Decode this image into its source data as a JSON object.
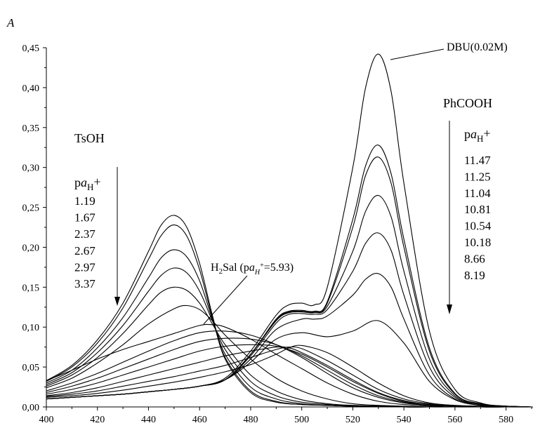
{
  "chart_data": {
    "type": "line",
    "ylabel": "A",
    "xlim": [
      400,
      590
    ],
    "ylim": [
      0,
      0.45
    ],
    "x_ticks": [
      400,
      420,
      440,
      460,
      480,
      500,
      520,
      540,
      560,
      580
    ],
    "x_tick_labels": [
      "400",
      "420",
      "440",
      "460",
      "480",
      "500",
      "520",
      "540",
      "560",
      "580"
    ],
    "y_ticks": [
      0,
      0.05,
      0.1,
      0.15,
      0.2,
      0.25,
      0.3,
      0.35,
      0.4,
      0.45
    ],
    "y_tick_labels": [
      "0,00",
      "0,05",
      "0,10",
      "0,15",
      "0,20",
      "0,25",
      "0,30",
      "0,35",
      "0,40",
      "0,45"
    ],
    "grid": false,
    "tsoh": {
      "title": "TsOH",
      "pa_p": "p",
      "pa_a": "a",
      "pa_sub": "H",
      "pa_sup": "+",
      "values": [
        "1.19",
        "1.67",
        "2.37",
        "2.67",
        "2.97",
        "3.37"
      ]
    },
    "phcooh": {
      "title": "PhCOOH",
      "pa_p": "p",
      "pa_a": "a",
      "pa_sub": "H",
      "pa_sup": "+",
      "values": [
        "11.47",
        "11.25",
        "11.04",
        "10.81",
        "10.54",
        "10.18",
        "8.66",
        "8.19"
      ]
    },
    "h2sal": {
      "h": "H",
      "sub2": "2",
      "sal": "Sal (p",
      "a": "a",
      "asub": "H",
      "asup": "+",
      "val": "=5.93)"
    },
    "dbu": {
      "label": "DBU(0.02M)"
    },
    "series": [
      {
        "x": [
          400,
          410,
          420,
          430,
          440,
          445,
          450,
          455,
          460,
          465,
          470,
          480,
          490,
          500,
          510,
          520,
          530,
          540,
          550,
          560,
          570,
          580,
          590
        ],
        "y": [
          0.033,
          0.052,
          0.084,
          0.13,
          0.195,
          0.228,
          0.24,
          0.225,
          0.18,
          0.115,
          0.06,
          0.018,
          0.006,
          0.003,
          0.002,
          0.001,
          0.001,
          0,
          0,
          0,
          0,
          0,
          0
        ]
      },
      {
        "x": [
          400,
          410,
          420,
          430,
          440,
          445,
          450,
          455,
          460,
          465,
          470,
          480,
          490,
          500,
          510,
          520,
          530,
          540,
          550,
          560,
          570,
          580,
          590
        ],
        "y": [
          0.032,
          0.05,
          0.08,
          0.124,
          0.185,
          0.215,
          0.228,
          0.214,
          0.172,
          0.112,
          0.062,
          0.02,
          0.007,
          0.003,
          0.002,
          0.001,
          0.001,
          0,
          0,
          0,
          0,
          0,
          0
        ]
      },
      {
        "x": [
          400,
          410,
          420,
          430,
          440,
          445,
          450,
          455,
          460,
          465,
          470,
          480,
          490,
          500,
          510,
          520,
          530,
          540,
          550,
          560,
          570,
          580,
          590
        ],
        "y": [
          0.03,
          0.046,
          0.074,
          0.112,
          0.162,
          0.187,
          0.197,
          0.188,
          0.158,
          0.11,
          0.066,
          0.025,
          0.01,
          0.004,
          0.002,
          0.001,
          0.001,
          0,
          0,
          0,
          0,
          0,
          0
        ]
      },
      {
        "x": [
          400,
          410,
          420,
          430,
          440,
          445,
          450,
          455,
          460,
          465,
          470,
          480,
          490,
          500,
          510,
          520,
          530,
          540,
          550,
          560,
          570,
          580,
          590
        ],
        "y": [
          0.028,
          0.043,
          0.068,
          0.102,
          0.145,
          0.165,
          0.174,
          0.168,
          0.145,
          0.108,
          0.072,
          0.032,
          0.014,
          0.006,
          0.003,
          0.001,
          0.001,
          0,
          0,
          0,
          0,
          0,
          0
        ]
      },
      {
        "x": [
          400,
          410,
          420,
          430,
          440,
          445,
          450,
          455,
          460,
          465,
          470,
          480,
          490,
          500,
          510,
          520,
          530,
          540,
          550,
          560,
          570,
          580,
          590
        ],
        "y": [
          0.026,
          0.04,
          0.062,
          0.092,
          0.128,
          0.144,
          0.15,
          0.146,
          0.13,
          0.104,
          0.078,
          0.04,
          0.02,
          0.009,
          0.004,
          0.002,
          0.001,
          0,
          0,
          0,
          0,
          0,
          0
        ]
      },
      {
        "x": [
          400,
          410,
          420,
          430,
          440,
          450,
          455,
          460,
          465,
          470,
          480,
          490,
          500,
          510,
          520,
          530,
          540,
          550,
          560,
          570,
          580,
          590
        ],
        "y": [
          0.024,
          0.036,
          0.055,
          0.078,
          0.104,
          0.123,
          0.127,
          0.122,
          0.108,
          0.09,
          0.06,
          0.036,
          0.02,
          0.01,
          0.004,
          0.002,
          0.001,
          0,
          0,
          0,
          0,
          0
        ]
      },
      {
        "x": [
          400,
          410,
          420,
          430,
          440,
          450,
          460,
          465,
          470,
          480,
          490,
          500,
          510,
          520,
          530,
          540,
          550,
          560,
          570,
          580,
          590
        ],
        "y": [
          0.033,
          0.046,
          0.06,
          0.072,
          0.082,
          0.092,
          0.102,
          0.103,
          0.1,
          0.085,
          0.066,
          0.048,
          0.03,
          0.016,
          0.007,
          0.003,
          0.001,
          0,
          0,
          0,
          0
        ]
      },
      {
        "x": [
          400,
          410,
          420,
          430,
          440,
          450,
          460,
          470,
          480,
          490,
          500,
          510,
          520,
          530,
          540,
          550,
          560,
          570,
          580,
          590
        ],
        "y": [
          0.02,
          0.03,
          0.042,
          0.056,
          0.07,
          0.083,
          0.093,
          0.095,
          0.09,
          0.078,
          0.062,
          0.042,
          0.024,
          0.012,
          0.005,
          0.002,
          0.001,
          0,
          0,
          0
        ]
      },
      {
        "x": [
          400,
          410,
          420,
          430,
          440,
          450,
          460,
          470,
          480,
          490,
          500,
          510,
          520,
          530,
          540,
          550,
          560,
          570,
          580,
          590
        ],
        "y": [
          0.018,
          0.026,
          0.036,
          0.048,
          0.06,
          0.072,
          0.082,
          0.086,
          0.085,
          0.078,
          0.064,
          0.046,
          0.028,
          0.014,
          0.006,
          0.002,
          0.001,
          0,
          0,
          0
        ]
      },
      {
        "x": [
          400,
          410,
          420,
          430,
          440,
          450,
          460,
          470,
          480,
          490,
          500,
          510,
          520,
          530,
          540,
          550,
          560,
          570,
          580,
          590
        ],
        "y": [
          0.016,
          0.022,
          0.03,
          0.04,
          0.05,
          0.06,
          0.07,
          0.076,
          0.078,
          0.076,
          0.066,
          0.05,
          0.032,
          0.017,
          0.007,
          0.003,
          0.001,
          0,
          0,
          0
        ]
      },
      {
        "x": [
          400,
          410,
          420,
          430,
          440,
          450,
          460,
          470,
          480,
          490,
          495,
          500,
          510,
          520,
          530,
          540,
          550,
          560,
          570,
          580,
          590
        ],
        "y": [
          0.014,
          0.018,
          0.024,
          0.032,
          0.04,
          0.048,
          0.056,
          0.064,
          0.07,
          0.075,
          0.074,
          0.068,
          0.052,
          0.034,
          0.018,
          0.008,
          0.003,
          0.001,
          0,
          0,
          0
        ]
      },
      {
        "x": [
          400,
          410,
          420,
          430,
          440,
          450,
          460,
          470,
          480,
          490,
          495,
          500,
          510,
          520,
          530,
          540,
          550,
          560,
          570,
          580,
          590
        ],
        "y": [
          0.013,
          0.016,
          0.02,
          0.026,
          0.032,
          0.038,
          0.045,
          0.052,
          0.062,
          0.072,
          0.075,
          0.073,
          0.058,
          0.04,
          0.022,
          0.01,
          0.004,
          0.001,
          0,
          0,
          0
        ]
      },
      {
        "x": [
          400,
          410,
          420,
          430,
          440,
          450,
          460,
          470,
          480,
          490,
          495,
          500,
          510,
          520,
          530,
          540,
          550,
          560,
          570,
          580,
          590
        ],
        "y": [
          0.012,
          0.014,
          0.017,
          0.021,
          0.026,
          0.031,
          0.037,
          0.044,
          0.053,
          0.066,
          0.074,
          0.077,
          0.068,
          0.05,
          0.03,
          0.014,
          0.005,
          0.002,
          0.001,
          0,
          0
        ]
      },
      {
        "x": [
          400,
          410,
          420,
          430,
          440,
          450,
          460,
          470,
          480,
          490,
          500,
          510,
          520,
          530,
          540,
          550,
          560,
          570,
          580,
          590
        ],
        "y": [
          0.01,
          0.012,
          0.014,
          0.016,
          0.019,
          0.022,
          0.026,
          0.034,
          0.056,
          0.085,
          0.093,
          0.088,
          0.095,
          0.108,
          0.08,
          0.032,
          0.009,
          0.002,
          0.001,
          0
        ]
      },
      {
        "x": [
          400,
          410,
          420,
          430,
          440,
          450,
          460,
          470,
          480,
          490,
          500,
          505,
          510,
          520,
          525,
          530,
          535,
          540,
          550,
          560,
          570,
          580,
          590
        ],
        "y": [
          0.01,
          0.012,
          0.014,
          0.016,
          0.019,
          0.022,
          0.026,
          0.034,
          0.06,
          0.097,
          0.11,
          0.11,
          0.114,
          0.14,
          0.16,
          0.167,
          0.15,
          0.11,
          0.04,
          0.01,
          0.002,
          0.001,
          0
        ]
      },
      {
        "x": [
          400,
          410,
          420,
          430,
          440,
          450,
          460,
          470,
          480,
          490,
          495,
          500,
          505,
          510,
          520,
          525,
          530,
          535,
          540,
          550,
          560,
          570,
          580,
          590
        ],
        "y": [
          0.01,
          0.012,
          0.014,
          0.016,
          0.019,
          0.022,
          0.026,
          0.034,
          0.064,
          0.105,
          0.116,
          0.117,
          0.116,
          0.122,
          0.17,
          0.205,
          0.218,
          0.196,
          0.14,
          0.05,
          0.012,
          0.003,
          0.001,
          0
        ]
      },
      {
        "x": [
          400,
          410,
          420,
          430,
          440,
          450,
          460,
          470,
          480,
          490,
          495,
          500,
          505,
          510,
          520,
          525,
          530,
          535,
          540,
          550,
          560,
          570,
          580,
          590
        ],
        "y": [
          0.01,
          0.012,
          0.014,
          0.016,
          0.019,
          0.022,
          0.026,
          0.034,
          0.066,
          0.108,
          0.118,
          0.119,
          0.118,
          0.126,
          0.195,
          0.245,
          0.265,
          0.238,
          0.17,
          0.06,
          0.014,
          0.003,
          0.001,
          0
        ]
      },
      {
        "x": [
          400,
          410,
          420,
          430,
          440,
          450,
          460,
          470,
          480,
          490,
          495,
          500,
          505,
          510,
          520,
          525,
          530,
          535,
          540,
          550,
          560,
          570,
          580,
          590
        ],
        "y": [
          0.01,
          0.012,
          0.014,
          0.016,
          0.019,
          0.022,
          0.026,
          0.034,
          0.066,
          0.109,
          0.119,
          0.12,
          0.119,
          0.13,
          0.225,
          0.29,
          0.313,
          0.28,
          0.2,
          0.07,
          0.016,
          0.004,
          0.001,
          0
        ]
      },
      {
        "x": [
          400,
          410,
          420,
          430,
          440,
          450,
          460,
          470,
          480,
          490,
          495,
          500,
          505,
          510,
          520,
          525,
          530,
          535,
          540,
          550,
          560,
          570,
          580,
          590
        ],
        "y": [
          0.01,
          0.012,
          0.014,
          0.016,
          0.019,
          0.022,
          0.026,
          0.034,
          0.066,
          0.11,
          0.12,
          0.121,
          0.12,
          0.132,
          0.235,
          0.302,
          0.328,
          0.292,
          0.21,
          0.074,
          0.017,
          0.004,
          0.001,
          0
        ]
      },
      {
        "x": [
          400,
          410,
          420,
          430,
          440,
          450,
          460,
          470,
          480,
          490,
          495,
          500,
          505,
          510,
          520,
          525,
          530,
          535,
          540,
          550,
          560,
          570,
          580,
          590
        ],
        "y": [
          0.01,
          0.012,
          0.014,
          0.016,
          0.019,
          0.022,
          0.026,
          0.036,
          0.07,
          0.115,
          0.128,
          0.13,
          0.128,
          0.15,
          0.3,
          0.4,
          0.442,
          0.395,
          0.28,
          0.095,
          0.022,
          0.005,
          0.001,
          0
        ]
      }
    ]
  }
}
